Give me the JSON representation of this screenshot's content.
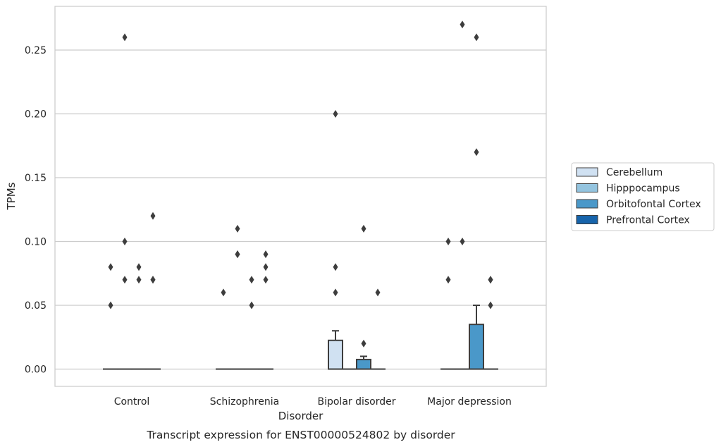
{
  "caption": "Transcript expression for ENST00000524802 by disorder",
  "chart_data": {
    "type": "box",
    "xlabel": "Disorder",
    "ylabel": "TPMs",
    "ylim": [
      -0.013,
      0.284
    ],
    "yticks": [
      "0.00",
      "0.05",
      "0.10",
      "0.15",
      "0.20",
      "0.25"
    ],
    "grid": true,
    "legend_position": "right",
    "categories": [
      "Control",
      "Schizophrenia",
      "Bipolar disorder",
      "Major depression"
    ],
    "series": [
      {
        "name": "Cerebellum",
        "color": "#d0e1f2",
        "boxes": [
          {
            "q1": 0,
            "median": 0,
            "q3": 0,
            "whisker_low": 0,
            "whisker_high": 0,
            "outliers": [
              0.05,
              0.08
            ]
          },
          {
            "q1": 0,
            "median": 0,
            "q3": 0,
            "whisker_low": 0,
            "whisker_high": 0,
            "outliers": [
              0.06
            ]
          },
          {
            "q1": 0,
            "median": 0,
            "q3": 0.0225,
            "whisker_low": 0,
            "whisker_high": 0.03,
            "outliers": [
              0.06,
              0.08,
              0.2
            ]
          },
          {
            "q1": 0,
            "median": 0,
            "q3": 0,
            "whisker_low": 0,
            "whisker_high": 0,
            "outliers": [
              0.07,
              0.1
            ]
          }
        ]
      },
      {
        "name": "Hipppocampus",
        "color": "#94c4df",
        "boxes": [
          {
            "q1": 0,
            "median": 0,
            "q3": 0,
            "whisker_low": 0,
            "whisker_high": 0,
            "outliers": [
              0.07,
              0.1,
              0.26
            ]
          },
          {
            "q1": 0,
            "median": 0,
            "q3": 0,
            "whisker_low": 0,
            "whisker_high": 0,
            "outliers": [
              0.09,
              0.09,
              0.11
            ]
          },
          {
            "q1": 0,
            "median": 0,
            "q3": 0,
            "whisker_low": 0,
            "whisker_high": 0,
            "outliers": []
          },
          {
            "q1": 0,
            "median": 0,
            "q3": 0,
            "whisker_low": 0,
            "whisker_high": 0,
            "outliers": [
              0.1,
              0.27
            ]
          }
        ]
      },
      {
        "name": "Orbitofontal Cortex",
        "color": "#4a98c9",
        "boxes": [
          {
            "q1": 0,
            "median": 0,
            "q3": 0,
            "whisker_low": 0,
            "whisker_high": 0,
            "outliers": [
              0.07,
              0.08
            ]
          },
          {
            "q1": 0,
            "median": 0,
            "q3": 0,
            "whisker_low": 0,
            "whisker_high": 0,
            "outliers": [
              0.05,
              0.07
            ]
          },
          {
            "q1": 0,
            "median": 0,
            "q3": 0.0075,
            "whisker_low": 0,
            "whisker_high": 0.01,
            "outliers": [
              0.02,
              0.11
            ]
          },
          {
            "q1": 0,
            "median": 0,
            "q3": 0.035,
            "whisker_low": 0,
            "whisker_high": 0.05,
            "outliers": [
              0.17,
              0.26
            ]
          }
        ]
      },
      {
        "name": "Prefrontal Cortex",
        "color": "#1764ab",
        "boxes": [
          {
            "q1": 0,
            "median": 0,
            "q3": 0,
            "whisker_low": 0,
            "whisker_high": 0,
            "outliers": [
              0.07,
              0.07,
              0.12
            ]
          },
          {
            "q1": 0,
            "median": 0,
            "q3": 0,
            "whisker_low": 0,
            "whisker_high": 0,
            "outliers": [
              0.07,
              0.08,
              0.09
            ]
          },
          {
            "q1": 0,
            "median": 0,
            "q3": 0,
            "whisker_low": 0,
            "whisker_high": 0,
            "outliers": [
              0.06
            ]
          },
          {
            "q1": 0,
            "median": 0,
            "q3": 0,
            "whisker_low": 0,
            "whisker_high": 0,
            "outliers": [
              0.05,
              0.07,
              0.07
            ]
          }
        ]
      }
    ]
  }
}
